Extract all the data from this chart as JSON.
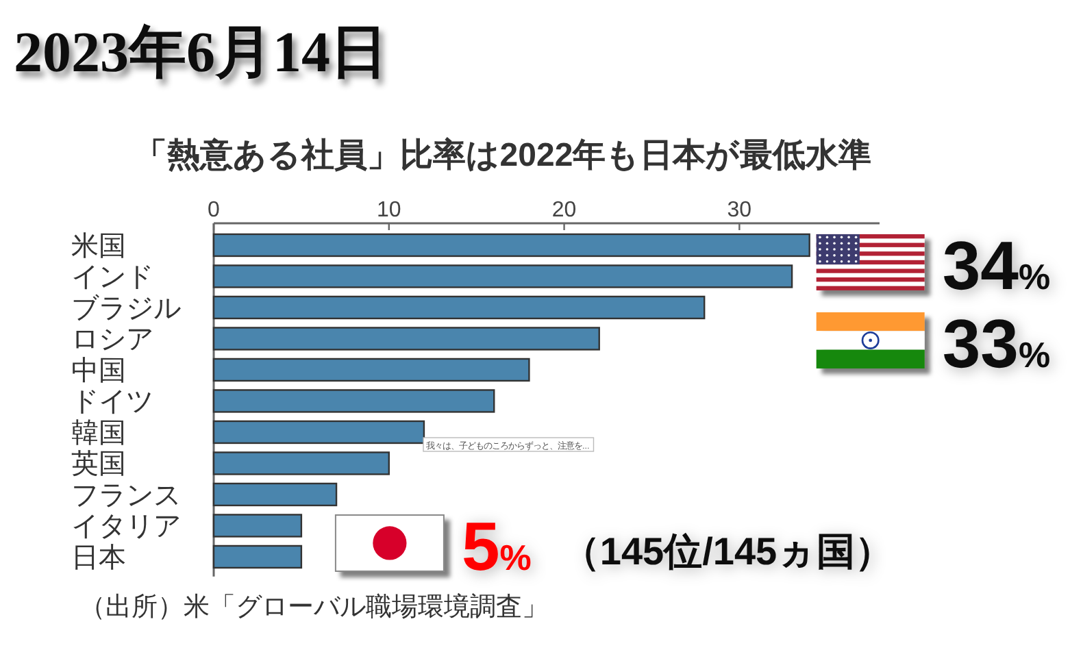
{
  "chart_data": {
    "type": "bar",
    "orientation": "horizontal",
    "title": "「熱意ある社員」比率は2022年も日本が最低水準",
    "categories": [
      "米国",
      "インド",
      "ブラジル",
      "ロシア",
      "中国",
      "ドイツ",
      "韓国",
      "英国",
      "フランス",
      "イタリア",
      "日本"
    ],
    "values": [
      34,
      33,
      28,
      22,
      18,
      16,
      12,
      10,
      7,
      5,
      5
    ],
    "color": "#4a85ad",
    "xlim": [
      0,
      38
    ],
    "xticks": [
      0,
      10,
      20,
      30
    ],
    "value_labels": [
      "34%",
      "33%",
      null,
      null,
      null,
      null,
      null,
      null,
      null,
      null,
      "5%"
    ],
    "annotations": [
      "2023年6月14日",
      "（145位/145ヵ国）",
      "（出所）米「グローバル職場環境調査」",
      "我々は、子どものころからずっと、注意を..."
    ]
  }
}
